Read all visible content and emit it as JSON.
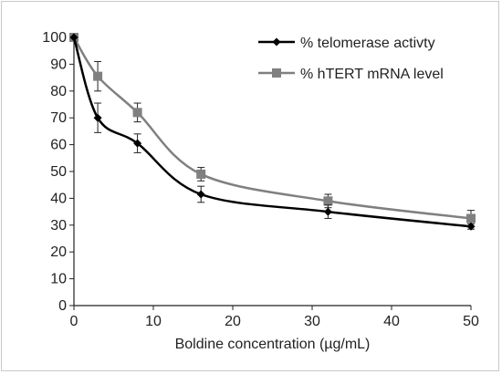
{
  "chart_data": {
    "type": "line",
    "title": "",
    "xlabel": "Boldine concentration (µg/mL)",
    "ylabel": "",
    "xlim": [
      0,
      50
    ],
    "ylim": [
      0,
      100
    ],
    "x_ticks": [
      "0",
      "10",
      "20",
      "30",
      "40",
      "50"
    ],
    "y_ticks": [
      "0",
      "10",
      "20",
      "30",
      "40",
      "50",
      "60",
      "70",
      "80",
      "90",
      "100"
    ],
    "grid": false,
    "legend_position": "top-right",
    "series": [
      {
        "name": "% telomerase activty",
        "color": "#000000",
        "marker": "diamond",
        "x": [
          0,
          3,
          8,
          16,
          32,
          50
        ],
        "y": [
          100,
          70,
          60.5,
          41.5,
          35,
          29.5
        ],
        "error": [
          0,
          5.5,
          3.5,
          3,
          2.5,
          1
        ]
      },
      {
        "name": "% hTERT mRNA level",
        "color": "#808080",
        "marker": "square",
        "x": [
          0,
          3,
          8,
          16,
          32,
          50
        ],
        "y": [
          100,
          85.5,
          72,
          49,
          39,
          32.5
        ],
        "error": [
          0,
          5.5,
          3.5,
          2.5,
          2.5,
          3
        ]
      }
    ]
  }
}
